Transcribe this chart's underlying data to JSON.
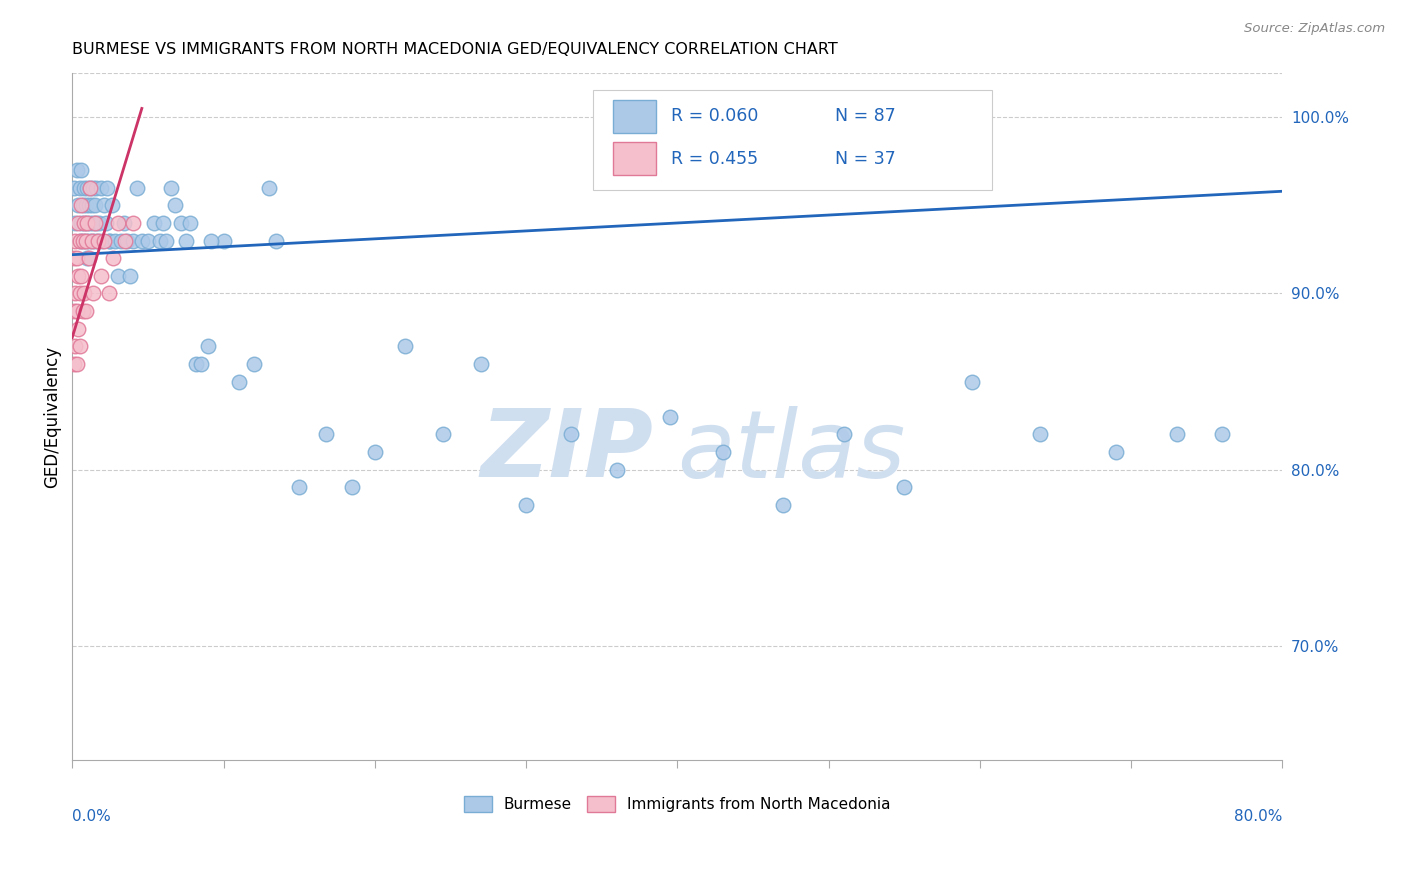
{
  "title": "BURMESE VS IMMIGRANTS FROM NORTH MACEDONIA GED/EQUIVALENCY CORRELATION CHART",
  "source": "Source: ZipAtlas.com",
  "ylabel": "GED/Equivalency",
  "xmin": 0.0,
  "xmax": 0.8,
  "ymin": 0.635,
  "ymax": 1.025,
  "blue_color": "#adc9e8",
  "blue_edge": "#7aadd4",
  "pink_color": "#f5bfcc",
  "pink_edge": "#e07898",
  "trend_blue": "#2266bb",
  "trend_pink": "#cc3366",
  "watermark_color": "#d0dff0",
  "R_blue": "0.060",
  "N_blue": "87",
  "R_pink": "0.455",
  "N_pink": "37",
  "legend_label_blue": "Burmese",
  "legend_label_pink": "Immigrants from North Macedonia",
  "blue_x": [
    0.001,
    0.002,
    0.003,
    0.004,
    0.005,
    0.005,
    0.006,
    0.006,
    0.007,
    0.007,
    0.008,
    0.008,
    0.009,
    0.009,
    0.01,
    0.01,
    0.01,
    0.011,
    0.011,
    0.012,
    0.012,
    0.013,
    0.013,
    0.014,
    0.014,
    0.015,
    0.015,
    0.016,
    0.016,
    0.017,
    0.018,
    0.019,
    0.02,
    0.021,
    0.022,
    0.023,
    0.024,
    0.025,
    0.026,
    0.028,
    0.03,
    0.032,
    0.034,
    0.036,
    0.038,
    0.04,
    0.043,
    0.046,
    0.05,
    0.054,
    0.058,
    0.062,
    0.068,
    0.075,
    0.082,
    0.09,
    0.1,
    0.11,
    0.12,
    0.135,
    0.15,
    0.168,
    0.185,
    0.2,
    0.22,
    0.245,
    0.27,
    0.3,
    0.33,
    0.36,
    0.395,
    0.43,
    0.47,
    0.51,
    0.55,
    0.595,
    0.64,
    0.69,
    0.73,
    0.76,
    0.06,
    0.065,
    0.072,
    0.078,
    0.085,
    0.092,
    0.13
  ],
  "blue_y": [
    0.96,
    0.94,
    0.97,
    0.95,
    0.93,
    0.96,
    0.94,
    0.97,
    0.95,
    0.93,
    0.96,
    0.94,
    0.93,
    0.95,
    0.96,
    0.94,
    0.92,
    0.95,
    0.93,
    0.96,
    0.94,
    0.93,
    0.95,
    0.94,
    0.96,
    0.93,
    0.95,
    0.94,
    0.96,
    0.93,
    0.94,
    0.96,
    0.93,
    0.95,
    0.94,
    0.96,
    0.93,
    0.93,
    0.95,
    0.93,
    0.91,
    0.93,
    0.94,
    0.93,
    0.91,
    0.93,
    0.96,
    0.93,
    0.93,
    0.94,
    0.93,
    0.93,
    0.95,
    0.93,
    0.86,
    0.87,
    0.93,
    0.85,
    0.86,
    0.93,
    0.79,
    0.82,
    0.79,
    0.81,
    0.87,
    0.82,
    0.86,
    0.78,
    0.82,
    0.8,
    0.83,
    0.81,
    0.78,
    0.82,
    0.79,
    0.85,
    0.82,
    0.81,
    0.82,
    0.82,
    0.94,
    0.96,
    0.94,
    0.94,
    0.86,
    0.93,
    0.96
  ],
  "pink_x": [
    0.001,
    0.001,
    0.001,
    0.002,
    0.002,
    0.002,
    0.003,
    0.003,
    0.003,
    0.004,
    0.004,
    0.004,
    0.005,
    0.005,
    0.005,
    0.006,
    0.006,
    0.007,
    0.007,
    0.008,
    0.008,
    0.009,
    0.009,
    0.01,
    0.011,
    0.012,
    0.013,
    0.014,
    0.015,
    0.017,
    0.019,
    0.021,
    0.024,
    0.027,
    0.03,
    0.035,
    0.04
  ],
  "pink_y": [
    0.92,
    0.89,
    0.86,
    0.93,
    0.9,
    0.87,
    0.92,
    0.89,
    0.86,
    0.94,
    0.91,
    0.88,
    0.93,
    0.9,
    0.87,
    0.95,
    0.91,
    0.93,
    0.89,
    0.94,
    0.9,
    0.93,
    0.89,
    0.94,
    0.92,
    0.96,
    0.93,
    0.9,
    0.94,
    0.93,
    0.91,
    0.93,
    0.9,
    0.92,
    0.94,
    0.93,
    0.94
  ],
  "blue_trend_x": [
    0.0,
    0.8
  ],
  "blue_trend_y": [
    0.922,
    0.958
  ],
  "pink_trend_x": [
    0.0,
    0.046
  ],
  "pink_trend_y": [
    0.875,
    1.005
  ]
}
